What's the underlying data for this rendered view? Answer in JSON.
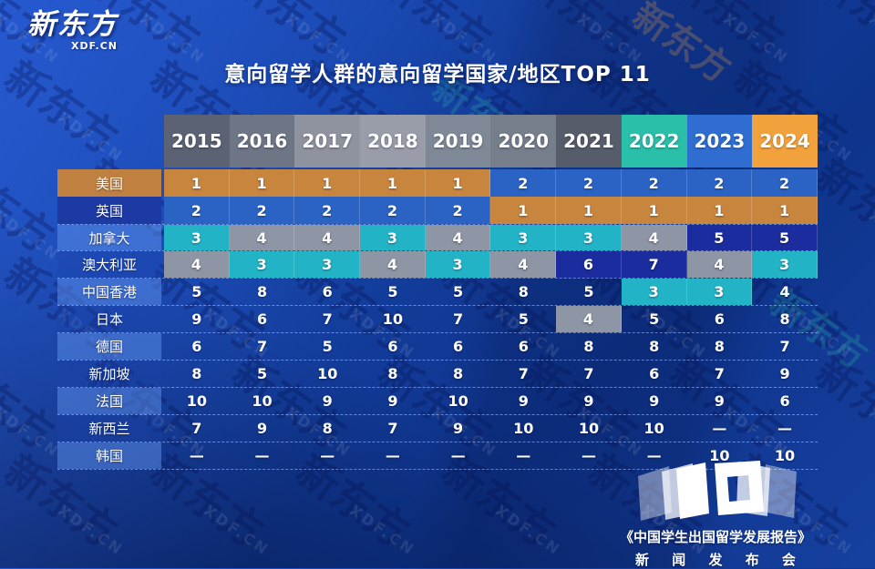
{
  "brand": {
    "logo_text": "新东方",
    "logo_sub": "XDF.CN"
  },
  "watermark": {
    "text": "XDF.CN",
    "logo": "新东方"
  },
  "footer": {
    "logo_number": "10",
    "report_title": "《中国学生出国留学发展报告》",
    "event": "新 闻 发 布 会"
  },
  "chart_data": {
    "type": "table",
    "title": "意向留学人群的意向留学国家/地区TOP 11",
    "subtitle": "",
    "legend_position": "none",
    "columns": [
      "2015",
      "2016",
      "2017",
      "2018",
      "2019",
      "2020",
      "2021",
      "2022",
      "2023",
      "2024"
    ],
    "column_header_colors": [
      "#5a6273",
      "#6e7585",
      "#8e939f",
      "#989da9",
      "#7f8896",
      "#767d8b",
      "#565c69",
      "#2abfa9",
      "#2f6ed0",
      "#f2a23c"
    ],
    "rank_colors": {
      "orange": "#c8853e",
      "blue": "#2b63c4",
      "teal": "#22b4c6",
      "gray": "#8e95a4",
      "navy": "#1b2d9e"
    },
    "rows": [
      {
        "label": "美国",
        "tint": "orange",
        "values": [
          "1",
          "1",
          "1",
          "1",
          "1",
          "2",
          "2",
          "2",
          "2",
          "2"
        ],
        "cell_colors": [
          "orange",
          "orange",
          "orange",
          "orange",
          "orange",
          "blue",
          "blue",
          "blue",
          "blue",
          "blue"
        ]
      },
      {
        "label": "英国",
        "tint": "navy",
        "values": [
          "2",
          "2",
          "2",
          "2",
          "2",
          "1",
          "1",
          "1",
          "1",
          "1"
        ],
        "cell_colors": [
          "blue",
          "blue",
          "blue",
          "blue",
          "blue",
          "orange",
          "orange",
          "orange",
          "orange",
          "orange"
        ]
      },
      {
        "label": "加拿大",
        "tint": "light",
        "values": [
          "3",
          "4",
          "4",
          "3",
          "4",
          "3",
          "3",
          "4",
          "5",
          "5"
        ],
        "cell_colors": [
          "teal",
          "gray",
          "gray",
          "teal",
          "gray",
          "teal",
          "teal",
          "gray",
          "navy",
          "navy"
        ]
      },
      {
        "label": "澳大利亚",
        "tint": "dark",
        "values": [
          "4",
          "3",
          "3",
          "4",
          "3",
          "4",
          "6",
          "7",
          "4",
          "3"
        ],
        "cell_colors": [
          "gray",
          "teal",
          "teal",
          "gray",
          "teal",
          "gray",
          "navy",
          "navy",
          "gray",
          "teal"
        ]
      },
      {
        "label": "中国香港",
        "tint": "light",
        "values": [
          "5",
          "8",
          "6",
          "5",
          "5",
          "8",
          "5",
          "3",
          "3",
          "4"
        ],
        "cell_colors": [
          "",
          "",
          "",
          "",
          "",
          "",
          "",
          "teal",
          "teal",
          ""
        ]
      },
      {
        "label": "日本",
        "tint": "dark",
        "values": [
          "9",
          "6",
          "7",
          "10",
          "7",
          "5",
          "4",
          "5",
          "6",
          "8"
        ],
        "cell_colors": [
          "",
          "",
          "",
          "",
          "",
          "",
          "gray",
          "",
          "",
          ""
        ]
      },
      {
        "label": "德国",
        "tint": "light",
        "values": [
          "6",
          "7",
          "5",
          "6",
          "6",
          "6",
          "8",
          "8",
          "8",
          "7"
        ],
        "cell_colors": [
          "",
          "",
          "",
          "",
          "",
          "",
          "",
          "",
          "",
          ""
        ]
      },
      {
        "label": "新加坡",
        "tint": "dark",
        "values": [
          "8",
          "5",
          "10",
          "8",
          "8",
          "7",
          "7",
          "6",
          "7",
          "9"
        ],
        "cell_colors": [
          "",
          "",
          "",
          "",
          "",
          "",
          "",
          "",
          "",
          ""
        ]
      },
      {
        "label": "法国",
        "tint": "light",
        "values": [
          "10",
          "10",
          "9",
          "9",
          "10",
          "9",
          "9",
          "9",
          "9",
          "6"
        ],
        "cell_colors": [
          "",
          "",
          "",
          "",
          "",
          "",
          "",
          "",
          "",
          ""
        ]
      },
      {
        "label": "新西兰",
        "tint": "dark",
        "values": [
          "7",
          "9",
          "8",
          "7",
          "9",
          "10",
          "10",
          "10",
          "—",
          "—"
        ],
        "cell_colors": [
          "",
          "",
          "",
          "",
          "",
          "",
          "",
          "",
          "",
          ""
        ]
      },
      {
        "label": "韩国",
        "tint": "light",
        "values": [
          "—",
          "—",
          "—",
          "—",
          "—",
          "—",
          "—",
          "—",
          "10",
          "10"
        ],
        "cell_colors": [
          "",
          "",
          "",
          "",
          "",
          "",
          "",
          "",
          "",
          ""
        ]
      }
    ]
  }
}
